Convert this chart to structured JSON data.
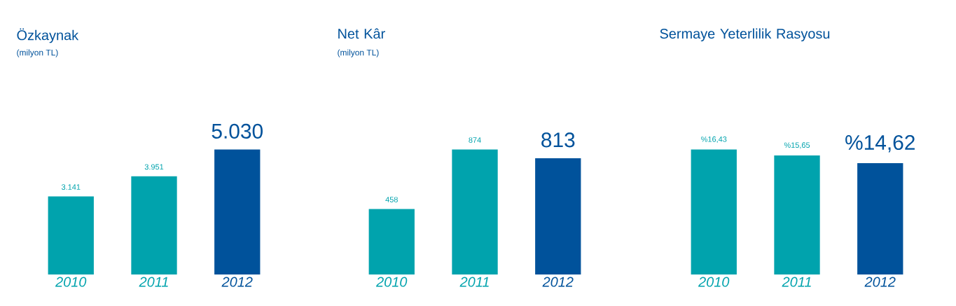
{
  "chart_data": [
    {
      "type": "bar",
      "title": "Özkaynak",
      "subtitle": "(milyon TL)",
      "categories": [
        "2010",
        "2011",
        "2012"
      ],
      "values": [
        3141,
        3951,
        5030
      ],
      "value_labels": [
        "3.141",
        "3.951",
        "5.030"
      ],
      "colors": [
        "#00a3ad",
        "#00a3ad",
        "#00529b"
      ]
    },
    {
      "type": "bar",
      "title": "Net Kâr",
      "subtitle": "(milyon TL)",
      "categories": [
        "2010",
        "2011",
        "2012"
      ],
      "values": [
        458,
        874,
        813
      ],
      "value_labels": [
        "458",
        "874",
        "813"
      ],
      "colors": [
        "#00a3ad",
        "#00a3ad",
        "#00529b"
      ]
    },
    {
      "type": "bar",
      "title": "Sermaye Yeterlilik Rasyosu",
      "categories": [
        "2010",
        "2011",
        "2012"
      ],
      "values": [
        16.43,
        15.65,
        14.62
      ],
      "value_labels": [
        "%16,43",
        "%15,65",
        "%14,62"
      ],
      "colors": [
        "#00a3ad",
        "#00a3ad",
        "#00529b"
      ]
    }
  ]
}
